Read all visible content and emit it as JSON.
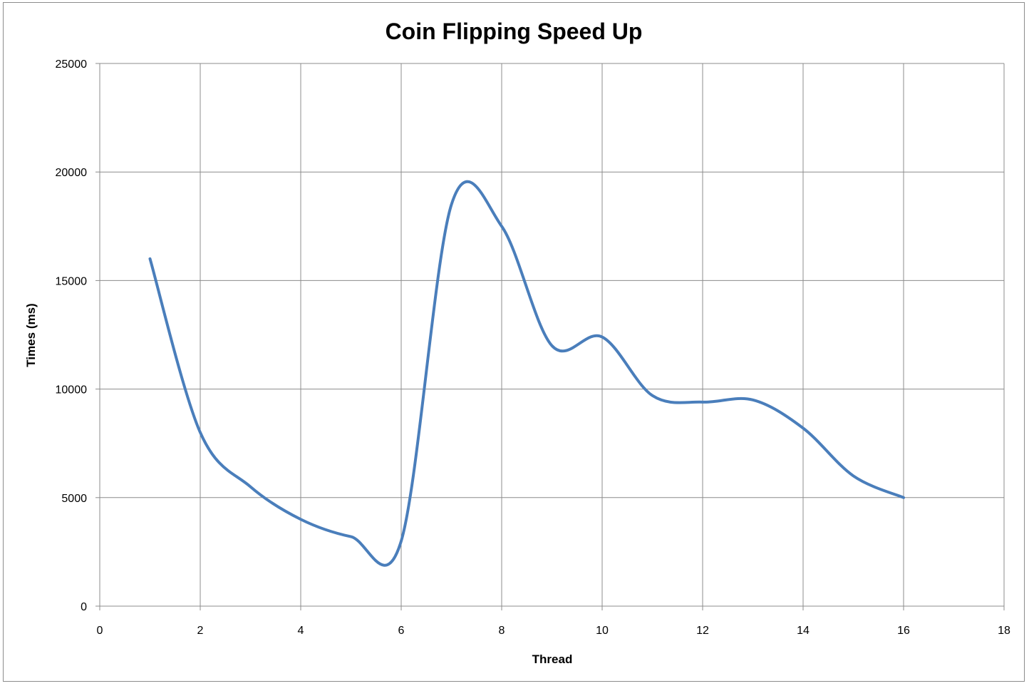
{
  "chart_data": {
    "type": "line",
    "title": "Coin Flipping Speed Up",
    "xlabel": "Thread",
    "ylabel": "Times (ms)",
    "xlim": [
      0,
      18
    ],
    "ylim": [
      0,
      25000
    ],
    "x_ticks": [
      0,
      2,
      4,
      6,
      8,
      10,
      12,
      14,
      16,
      18
    ],
    "y_ticks": [
      0,
      5000,
      10000,
      15000,
      20000,
      25000
    ],
    "grid": true,
    "smoothed": true,
    "series": [
      {
        "color": "#4a7ebb",
        "x": [
          1,
          2,
          3,
          4,
          5,
          6,
          7,
          8,
          9,
          10,
          11,
          12,
          13,
          14,
          15,
          16
        ],
        "values": [
          16000,
          8000,
          5500,
          4000,
          3200,
          3000,
          18500,
          17500,
          12000,
          12400,
          9700,
          9400,
          9500,
          8200,
          6000,
          5000
        ]
      }
    ]
  }
}
